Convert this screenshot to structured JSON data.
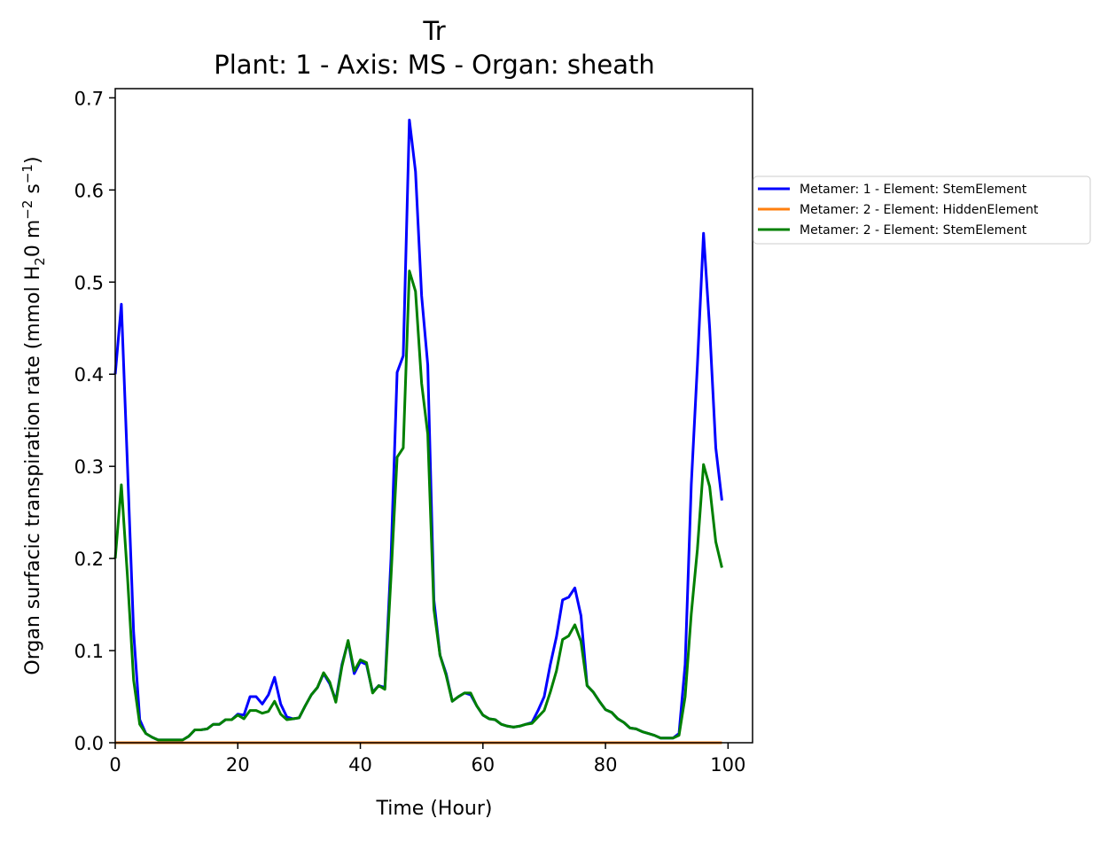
{
  "chart_data": {
    "type": "line",
    "title": "Tr",
    "subtitle": "Plant: 1 - Axis: MS - Organ: sheath",
    "xlabel": "Time (Hour)",
    "ylabel": {
      "parts": [
        "Organ surfacic transpiration rate (mmol H",
        "2",
        "0 m",
        "−2",
        " s",
        "−1",
        ")"
      ]
    },
    "xlim": [
      0,
      104
    ],
    "ylim": [
      0,
      0.71
    ],
    "x_ticks": [
      0,
      20,
      40,
      60,
      80,
      100
    ],
    "x_tick_labels": [
      "0",
      "20",
      "40",
      "60",
      "80",
      "100"
    ],
    "y_ticks": [
      0,
      0.1,
      0.2,
      0.3,
      0.4,
      0.5,
      0.6,
      0.7
    ],
    "y_tick_labels": [
      "0.0",
      "0.1",
      "0.2",
      "0.3",
      "0.4",
      "0.5",
      "0.6",
      "0.7"
    ],
    "grid": false,
    "legend_position": "outside right",
    "series": [
      {
        "name": "Metamer: 1 - Element: StemElement",
        "color": "#0000ff",
        "x": [
          0,
          1,
          2,
          3,
          4,
          5,
          6,
          7,
          8,
          9,
          10,
          11,
          12,
          13,
          14,
          15,
          16,
          17,
          18,
          19,
          20,
          21,
          22,
          23,
          24,
          25,
          26,
          27,
          28,
          29,
          30,
          31,
          32,
          33,
          34,
          35,
          36,
          37,
          38,
          39,
          40,
          41,
          42,
          43,
          44,
          45,
          46,
          47,
          48,
          49,
          50,
          51,
          52,
          53,
          54,
          55,
          56,
          57,
          58,
          59,
          60,
          61,
          62,
          63,
          64,
          65,
          66,
          67,
          68,
          69,
          70,
          71,
          72,
          73,
          74,
          75,
          76,
          77,
          78,
          79,
          80,
          81,
          82,
          83,
          84,
          85,
          86,
          87,
          88,
          89,
          90,
          91,
          92,
          93,
          94,
          95,
          96,
          97,
          98,
          99
        ],
        "values": [
          0.4,
          0.476,
          0.3,
          0.12,
          0.025,
          0.01,
          0.006,
          0.003,
          0.003,
          0.003,
          0.003,
          0.003,
          0.007,
          0.014,
          0.014,
          0.015,
          0.02,
          0.02,
          0.025,
          0.025,
          0.031,
          0.03,
          0.05,
          0.05,
          0.042,
          0.052,
          0.071,
          0.042,
          0.028,
          0.026,
          0.027,
          0.04,
          0.052,
          0.06,
          0.075,
          0.064,
          0.046,
          0.085,
          0.11,
          0.075,
          0.088,
          0.085,
          0.055,
          0.062,
          0.06,
          0.2,
          0.402,
          0.42,
          0.676,
          0.62,
          0.485,
          0.41,
          0.155,
          0.095,
          0.075,
          0.045,
          0.05,
          0.054,
          0.052,
          0.04,
          0.03,
          0.026,
          0.025,
          0.02,
          0.018,
          0.017,
          0.018,
          0.02,
          0.022,
          0.035,
          0.05,
          0.085,
          0.115,
          0.155,
          0.158,
          0.168,
          0.138,
          0.062,
          0.055,
          0.045,
          0.036,
          0.033,
          0.026,
          0.022,
          0.016,
          0.015,
          0.012,
          0.01,
          0.008,
          0.005,
          0.005,
          0.005,
          0.01,
          0.085,
          0.28,
          0.41,
          0.553,
          0.45,
          0.32,
          0.263
        ]
      },
      {
        "name": "Metamer: 2 - Element: HiddenElement",
        "color": "#ff7f0e",
        "x": [
          0,
          99
        ],
        "values": [
          0,
          0
        ]
      },
      {
        "name": "Metamer: 2 - Element: StemElement",
        "color": "#008000",
        "x": [
          0,
          1,
          2,
          3,
          4,
          5,
          6,
          7,
          8,
          9,
          10,
          11,
          12,
          13,
          14,
          15,
          16,
          17,
          18,
          19,
          20,
          21,
          22,
          23,
          24,
          25,
          26,
          27,
          28,
          29,
          30,
          31,
          32,
          33,
          34,
          35,
          36,
          37,
          38,
          39,
          40,
          41,
          42,
          43,
          44,
          45,
          46,
          47,
          48,
          49,
          50,
          51,
          52,
          53,
          54,
          55,
          56,
          57,
          58,
          59,
          60,
          61,
          62,
          63,
          64,
          65,
          66,
          67,
          68,
          69,
          70,
          71,
          72,
          73,
          74,
          75,
          76,
          77,
          78,
          79,
          80,
          81,
          82,
          83,
          84,
          85,
          86,
          87,
          88,
          89,
          90,
          91,
          92,
          93,
          94,
          95,
          96,
          97,
          98,
          99
        ],
        "values": [
          0.2,
          0.28,
          0.18,
          0.068,
          0.02,
          0.01,
          0.006,
          0.003,
          0.003,
          0.003,
          0.003,
          0.003,
          0.007,
          0.014,
          0.014,
          0.015,
          0.02,
          0.02,
          0.025,
          0.025,
          0.03,
          0.026,
          0.035,
          0.035,
          0.032,
          0.034,
          0.045,
          0.031,
          0.025,
          0.026,
          0.027,
          0.04,
          0.052,
          0.06,
          0.076,
          0.066,
          0.044,
          0.083,
          0.111,
          0.078,
          0.09,
          0.087,
          0.054,
          0.062,
          0.058,
          0.18,
          0.31,
          0.32,
          0.512,
          0.49,
          0.39,
          0.335,
          0.145,
          0.095,
          0.073,
          0.045,
          0.05,
          0.054,
          0.054,
          0.04,
          0.03,
          0.026,
          0.025,
          0.02,
          0.018,
          0.017,
          0.018,
          0.02,
          0.021,
          0.028,
          0.035,
          0.055,
          0.078,
          0.112,
          0.116,
          0.128,
          0.11,
          0.062,
          0.055,
          0.045,
          0.036,
          0.033,
          0.026,
          0.022,
          0.016,
          0.015,
          0.012,
          0.01,
          0.008,
          0.005,
          0.005,
          0.005,
          0.008,
          0.05,
          0.14,
          0.21,
          0.302,
          0.278,
          0.218,
          0.19
        ]
      }
    ]
  }
}
